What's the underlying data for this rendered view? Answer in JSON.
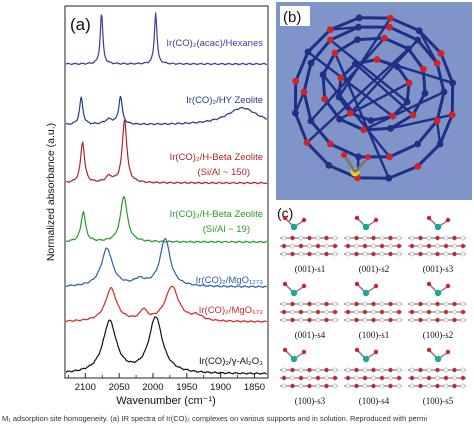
{
  "panel_a": {
    "label": "(a)",
    "ylabel": "Normalized absorbance (a.u.)",
    "xlabel": "Wavenumber (cm⁻¹)",
    "x_ticks": [
      "2100",
      "2050",
      "2000",
      "1950",
      "1900",
      "1850"
    ],
    "spectra": [
      {
        "label": "Ir(CO)₂(acac)/Hexanes",
        "color": "#3b3d99"
      },
      {
        "label": "Ir(CO)₂/HY Zeolite",
        "color": "#243a8c"
      },
      {
        "label": "Ir(CO)₂/H-Beta Zeolite",
        "label2": "(Si/Al ~ 150)",
        "color": "#b2222a"
      },
      {
        "label": "Ir(CO)₂/H-Beta Zeolite",
        "label2": "(Si/Al ~ 19)",
        "color": "#2a9a2a"
      },
      {
        "label": "Ir(CO)₂/MgO₁₂₇₃",
        "color": "#2a5fb0"
      },
      {
        "label": "Ir(CO)₂/MgO₆₇₃",
        "color": "#d42a2a"
      },
      {
        "label": "Ir(CO)₂/γ-Al₂O₃",
        "color": "#111111"
      }
    ]
  },
  "panel_b": {
    "label": "(b)",
    "bg_color": "#7f95c9"
  },
  "panel_c": {
    "label": "(c)",
    "sites": [
      "(001)-s1",
      "(001)-s2",
      "(001)-s3",
      "(001)-s4",
      "(100)-s1",
      "(100)-s2",
      "(100)-s3",
      "(100)-s4",
      "(100)-s5"
    ]
  },
  "caption": "M₁ adsorption site homogeneity. (a) IR spectra of Ir(CO)₂ complexes on various supports and in solution. Reproduced with permi"
}
